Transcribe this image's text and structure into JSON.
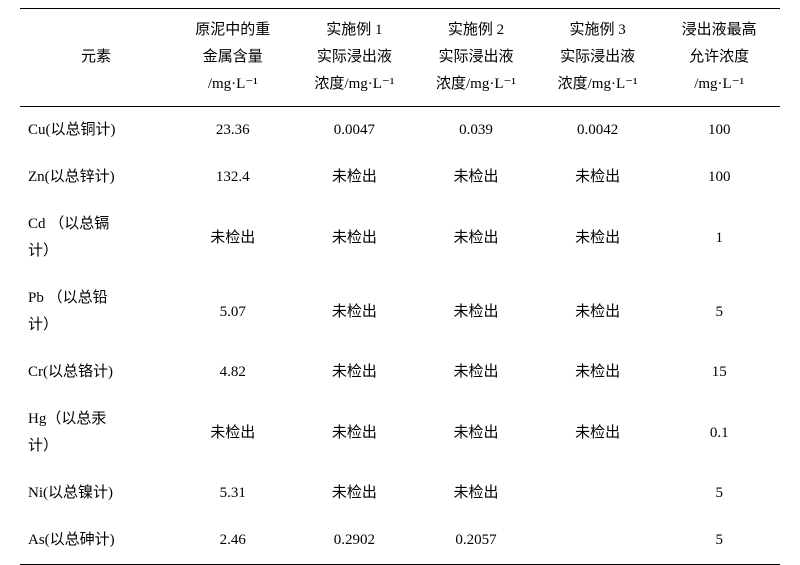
{
  "table": {
    "headers": {
      "element": "元素",
      "original": "原泥中的重\n金属含量\n/mg·L⁻¹",
      "example1": "实施例 1\n实际浸出液\n浓度/mg·L⁻¹",
      "example2": "实施例 2\n实际浸出液\n浓度/mg·L⁻¹",
      "example3": "实施例 3\n实际浸出液\n浓度/mg·L⁻¹",
      "maxAllowed": "浸出液最高\n允许浓度\n/mg·L⁻¹"
    },
    "rows": [
      {
        "element": "Cu(以总铜计)",
        "original": "23.36",
        "ex1": "0.0047",
        "ex2": "0.039",
        "ex3": "0.0042",
        "max": "100"
      },
      {
        "element": "Zn(以总锌计)",
        "original": "132.4",
        "ex1": "未检出",
        "ex2": "未检出",
        "ex3": "未检出",
        "max": "100"
      },
      {
        "element": "Cd （以总镉\n计）",
        "original": "未检出",
        "ex1": "未检出",
        "ex2": "未检出",
        "ex3": "未检出",
        "max": "1"
      },
      {
        "element": "Pb （以总铅\n计）",
        "original": "5.07",
        "ex1": "未检出",
        "ex2": "未检出",
        "ex3": "未检出",
        "max": "5"
      },
      {
        "element": "Cr(以总铬计)",
        "original": "4.82",
        "ex1": "未检出",
        "ex2": "未检出",
        "ex3": "未检出",
        "max": "15"
      },
      {
        "element": "Hg（以总汞\n计）",
        "original": "未检出",
        "ex1": "未检出",
        "ex2": "未检出",
        "ex3": "未检出",
        "max": "0.1"
      },
      {
        "element": "Ni(以总镍计)",
        "original": "5.31",
        "ex1": "未检出",
        "ex2": "未检出",
        "ex3": "",
        "max": "5"
      },
      {
        "element": "As(以总砷计)",
        "original": "2.46",
        "ex1": "0.2902",
        "ex2": "0.2057",
        "ex3": "",
        "max": "5"
      }
    ],
    "styling": {
      "font_family": "SimSun",
      "font_size": 15,
      "text_color": "#000000",
      "background_color": "#ffffff",
      "border_color": "#000000",
      "top_border_width": 1.5,
      "header_bottom_border_width": 1,
      "bottom_border_width": 1.5,
      "column_widths": [
        "20%",
        "16%",
        "16%",
        "16%",
        "16%",
        "16%"
      ]
    }
  }
}
